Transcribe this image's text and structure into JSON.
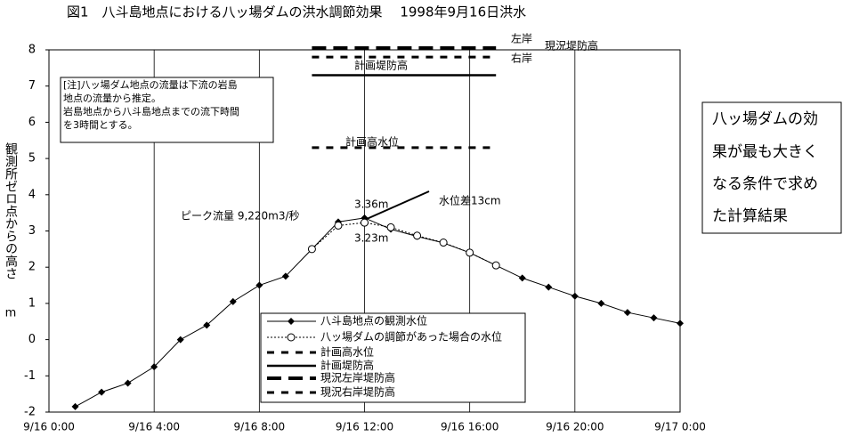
{
  "chart_data": {
    "type": "line",
    "title": "図1　八斗島地点における八ッ場ダムの洪水調節効果　 1998年9月16日洪水",
    "ylabel": "観測所ゼロ点からの高さ",
    "yunit": "m",
    "xlim": [
      0,
      24
    ],
    "xticks": [
      {
        "value": 0,
        "label": "9/16 0:00"
      },
      {
        "value": 4,
        "label": "9/16 4:00"
      },
      {
        "value": 8,
        "label": "9/16 8:00"
      },
      {
        "value": 12,
        "label": "9/16 12:00"
      },
      {
        "value": 16,
        "label": "9/16 16:00"
      },
      {
        "value": 20,
        "label": "9/16 20:00"
      },
      {
        "value": 24,
        "label": "9/17 0:00"
      }
    ],
    "ylim": [
      -2,
      8
    ],
    "yticks": [
      -2,
      -1,
      0,
      1,
      2,
      3,
      4,
      5,
      6,
      7,
      8
    ],
    "xgrid": true,
    "series": [
      {
        "name": "八斗島地点の観測水位",
        "color": "#000000",
        "style": "solid",
        "marker": "diamond",
        "x": [
          1,
          2,
          3,
          4,
          5,
          6,
          7,
          8,
          9,
          10,
          11,
          12,
          13,
          14,
          15,
          16,
          17,
          18,
          19,
          20,
          21,
          22,
          23,
          24
        ],
        "values": [
          -1.85,
          -1.45,
          -1.2,
          -0.75,
          0,
          0.4,
          1.05,
          1.5,
          1.75,
          2.5,
          3.25,
          3.36,
          3.05,
          2.85,
          2.67,
          2.4,
          2.05,
          1.7,
          1.45,
          1.2,
          1.0,
          0.75,
          0.6,
          0.45
        ]
      },
      {
        "name": "八ッ場ダムの調節があった場合の水位",
        "color": "#000000",
        "style": "dotted",
        "marker": "circle",
        "x": [
          10,
          11,
          12,
          13,
          14,
          15,
          16,
          17
        ],
        "values": [
          2.5,
          3.15,
          3.23,
          3.1,
          2.87,
          2.68,
          2.4,
          2.05
        ]
      },
      {
        "name": "計画高水位",
        "color": "#000000",
        "style": "dashed",
        "x": [
          10,
          17
        ],
        "values": [
          5.3,
          5.3
        ]
      },
      {
        "name": "計画堤防高",
        "color": "#000000",
        "style": "solid-thick",
        "x": [
          10,
          17
        ],
        "values": [
          7.3,
          7.3
        ]
      },
      {
        "name": "現況左岸堤防高",
        "color": "#000000",
        "style": "dashed-thick",
        "x": [
          10,
          17
        ],
        "values": [
          8.05,
          8.05
        ]
      },
      {
        "name": "現況右岸堤防高",
        "color": "#000000",
        "style": "dashed",
        "x": [
          10,
          17
        ],
        "values": [
          7.8,
          7.8
        ]
      }
    ],
    "annotations": [
      "ピーク流量 9,220m3/秒",
      "3.36m",
      "3.23m",
      "水位差13cm",
      "左岸",
      "現況堤防高",
      "右岸",
      "計画堤防高",
      "計画高水位"
    ],
    "note": [
      "[注]八ッ場ダム地点の流量は下流の岩島",
      "地点の流量から推定。",
      "岩島地点から八斗島地点までの流下時間",
      "を3時間とする。"
    ],
    "callout": [
      "八ッ場ダムの効",
      "果が最も大きく",
      "なる条件で求め",
      "た計算結果"
    ]
  }
}
